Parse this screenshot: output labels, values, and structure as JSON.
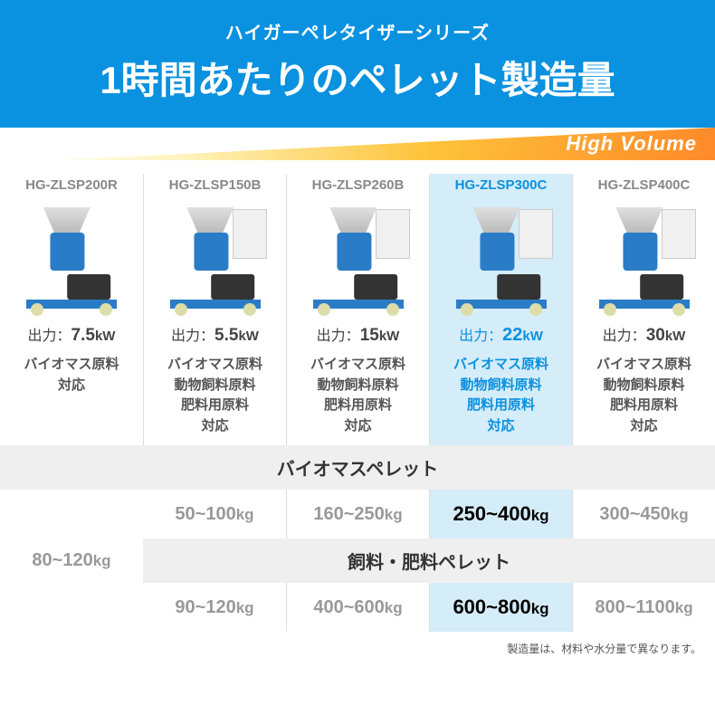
{
  "header": {
    "subtitle": "ハイガーペレタイザーシリーズ",
    "title": "1時間あたりのペレット製造量"
  },
  "volume_bar": {
    "label": "High Volume",
    "gradient_start": "#fdc33a",
    "gradient_end": "#ff8a2a",
    "text_color": "#ffffff"
  },
  "colors": {
    "header_bg": "#0a91df",
    "highlight_bg": "#d5ecf9",
    "section_bg": "#efefef",
    "model_gray": "#888888",
    "highlight_text": "#0a91df",
    "output_gray": "#999999",
    "output_highlight": "#000000"
  },
  "products": [
    {
      "model": "HG-ZLSP200R",
      "power_label": "出力：",
      "power_value": "7.5",
      "power_unit": "kW",
      "materials": [
        "バイオマス原料",
        "対応"
      ],
      "highlighted": false,
      "has_panel": false
    },
    {
      "model": "HG-ZLSP150B",
      "power_label": "出力：",
      "power_value": "5.5",
      "power_unit": "kW",
      "materials": [
        "バイオマス原料",
        "動物飼料原料",
        "肥料用原料",
        "対応"
      ],
      "highlighted": false,
      "has_panel": true
    },
    {
      "model": "HG-ZLSP260B",
      "power_label": "出力：",
      "power_value": "15",
      "power_unit": "kW",
      "materials": [
        "バイオマス原料",
        "動物飼料原料",
        "肥料用原料",
        "対応"
      ],
      "highlighted": false,
      "has_panel": true
    },
    {
      "model": "HG-ZLSP300C",
      "power_label": "出力：",
      "power_value": "22",
      "power_unit": "kW",
      "materials": [
        "バイオマス原料",
        "動物飼料原料",
        "肥料用原料",
        "対応"
      ],
      "highlighted": true,
      "has_panel": true
    },
    {
      "model": "HG-ZLSP400C",
      "power_label": "出力：",
      "power_value": "30",
      "power_unit": "kW",
      "materials": [
        "バイオマス原料",
        "動物飼料原料",
        "肥料用原料",
        "対応"
      ],
      "highlighted": false,
      "has_panel": true
    }
  ],
  "sections": {
    "biomass_title": "バイオマスペレット",
    "feed_title": "飼料・肥料ペレット"
  },
  "outputs": {
    "merged_first": {
      "value": "80~120",
      "unit": "kg"
    },
    "biomass": [
      {
        "value": "50~100",
        "unit": "kg",
        "highlighted": false
      },
      {
        "value": "160~250",
        "unit": "kg",
        "highlighted": false
      },
      {
        "value": "250~400",
        "unit": "kg",
        "highlighted": true
      },
      {
        "value": "300~450",
        "unit": "kg",
        "highlighted": false
      }
    ],
    "feed": [
      {
        "value": "90~120",
        "unit": "kg",
        "highlighted": false
      },
      {
        "value": "400~600",
        "unit": "kg",
        "highlighted": false
      },
      {
        "value": "600~800",
        "unit": "kg",
        "highlighted": true
      },
      {
        "value": "800~1100",
        "unit": "kg",
        "highlighted": false
      }
    ]
  },
  "footnote": "製造量は、材料や水分量で異なります。"
}
